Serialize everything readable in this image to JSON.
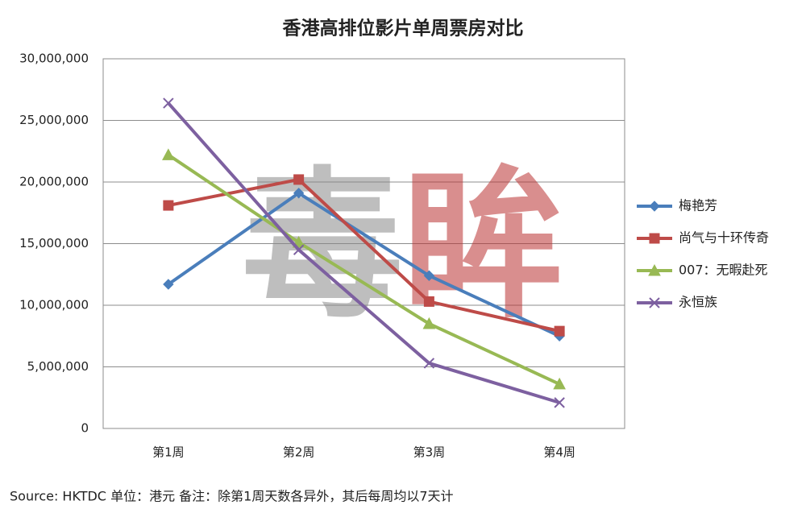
{
  "chart_data": {
    "type": "line",
    "title": "香港高排位影片单周票房对比",
    "categories": [
      "第1周",
      "第2周",
      "第3周",
      "第4周"
    ],
    "series": [
      {
        "name": "梅艳芳",
        "color": "#4a7ebb",
        "marker": "diamond",
        "values": [
          11700000,
          19100000,
          12400000,
          7500000
        ]
      },
      {
        "name": "尚气与十环传奇",
        "color": "#be4b48",
        "marker": "square",
        "values": [
          18100000,
          20200000,
          10300000,
          7900000
        ]
      },
      {
        "name": "007：无暇赴死",
        "color": "#98b954",
        "marker": "triangle",
        "values": [
          22200000,
          15100000,
          8500000,
          3600000
        ]
      },
      {
        "name": "永恒族",
        "color": "#7d60a0",
        "marker": "x",
        "values": [
          26400000,
          14500000,
          5300000,
          2100000
        ]
      }
    ],
    "ylim": [
      0,
      30000000
    ],
    "yticks": [
      0,
      {
        "value": 5000000,
        "label": "5,000,000"
      },
      {
        "value": 10000000,
        "label": "10,000,000"
      },
      {
        "value": 15000000,
        "label": "15,000,000"
      },
      {
        "value": 20000000,
        "label": "20,000,000"
      },
      {
        "value": 25000000,
        "label": "25,000,000"
      },
      {
        "value": 30000000,
        "label": "30,000,000"
      }
    ],
    "grid": true,
    "legend": "right",
    "watermark": [
      "毒",
      "眸"
    ],
    "footer": "Source:  HKTDC    单位：港元    备注：除第1周天数各异外，其后每周均以7天计"
  }
}
